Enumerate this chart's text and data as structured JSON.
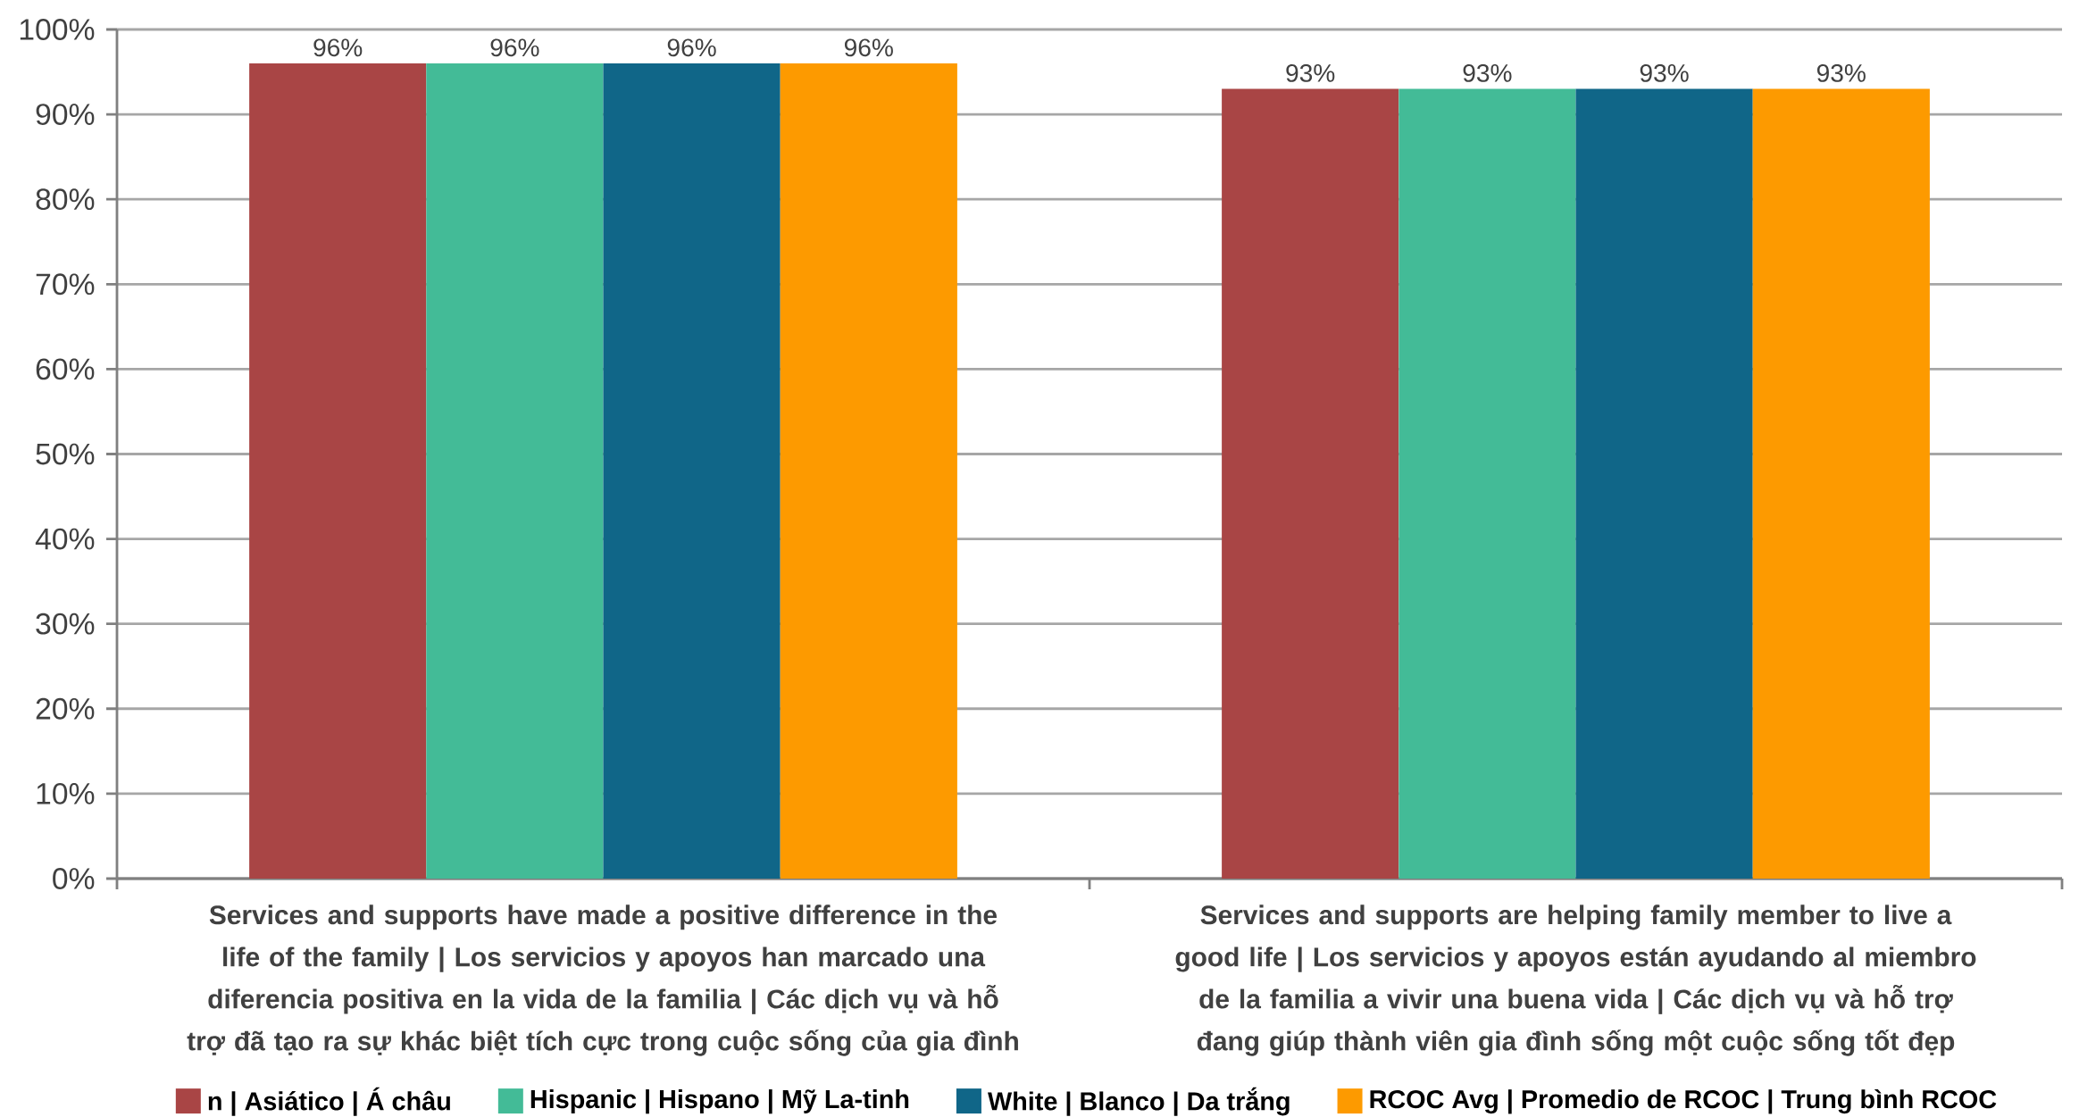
{
  "chart_data": {
    "type": "bar",
    "categories": [
      "Services and supports have made a positive difference in the life of the family | Los servicios y apoyos han marcado una diferencia positiva en la vida de la familia | Các dịch vụ và hỗ trợ đã tạo ra sự khác biệt tích cực trong cuộc sống của gia đình",
      "Services and supports are helping family member to live a good life | Los servicios y apoyos están ayudando al miembro de la familia a vivir una buena vida | Các dịch vụ và hỗ trợ đang giúp thành viên gia đình sống một cuộc sống tốt đẹp"
    ],
    "series": [
      {
        "name": "n | Asiático | Á châu",
        "color": "#a94545",
        "values": [
          96,
          93
        ],
        "value_labels": [
          "96%",
          "93%"
        ]
      },
      {
        "name": "Hispanic | Hispano | Mỹ La-tinh",
        "color": "#43bb97",
        "values": [
          96,
          93
        ],
        "value_labels": [
          "96%",
          "93%"
        ]
      },
      {
        "name": "White | Blanco | Da trắng",
        "color": "#106688",
        "values": [
          96,
          93
        ],
        "value_labels": [
          "96%",
          "93%"
        ]
      },
      {
        "name": "RCOC Avg | Promedio de RCOC | Trung bình RCOC",
        "color": "#fd9a00",
        "values": [
          96,
          93
        ],
        "value_labels": [
          "96%",
          "93%"
        ]
      }
    ],
    "ylim": [
      0,
      100
    ],
    "yticks": [
      {
        "value": 0,
        "label": "0%"
      },
      {
        "value": 10,
        "label": "10%"
      },
      {
        "value": 20,
        "label": "20%"
      },
      {
        "value": 30,
        "label": "30%"
      },
      {
        "value": 40,
        "label": "40%"
      },
      {
        "value": 50,
        "label": "50%"
      },
      {
        "value": 60,
        "label": "60%"
      },
      {
        "value": 70,
        "label": "70%"
      },
      {
        "value": 80,
        "label": "80%"
      },
      {
        "value": 90,
        "label": "90%"
      },
      {
        "value": 100,
        "label": "100%"
      }
    ],
    "grid": "y",
    "legend": "bottom"
  }
}
